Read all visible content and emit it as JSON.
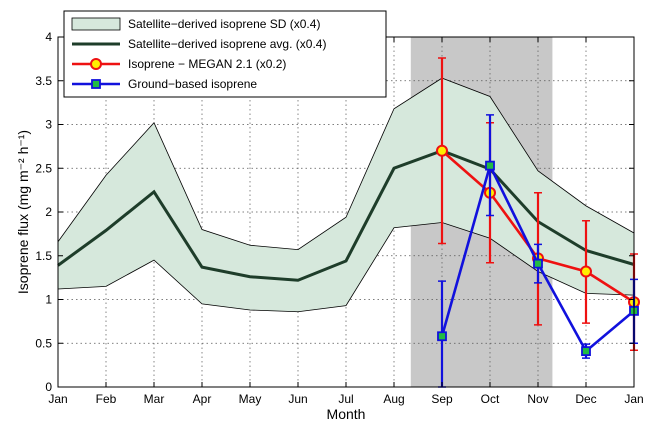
{
  "chart_data": {
    "type": "line",
    "xlabel": "Month",
    "ylabel": "Isoprene flux (mg m⁻² h⁻¹)",
    "x_categories": [
      "Jan",
      "Feb",
      "Mar",
      "Apr",
      "May",
      "Jun",
      "Jul",
      "Aug",
      "Sep",
      "Oct",
      "Nov",
      "Dec",
      "Jan"
    ],
    "ylim": [
      0,
      4
    ],
    "yticks": [
      "0",
      "0.5",
      "1",
      "1.5",
      "2",
      "2.5",
      "3",
      "3.5",
      "4"
    ],
    "grid": true,
    "legend_position": "top-left",
    "shaded_region": {
      "from": "Jul/Aug midpoint",
      "to": "Oct/Nov midpoint",
      "x_start": 7.35,
      "x_end": 10.3,
      "color": "#c8c8c8"
    },
    "series": [
      {
        "name": "Satellite−derived isoprene SD (x0.4)",
        "kind": "band",
        "color": "#d6e8dc",
        "edge_color": "#000000",
        "lower": [
          1.12,
          1.15,
          1.45,
          0.95,
          0.88,
          0.86,
          0.93,
          1.82,
          1.88,
          1.7,
          1.32,
          1.07,
          1.05
        ],
        "upper": [
          1.66,
          2.42,
          3.02,
          1.8,
          1.62,
          1.57,
          1.94,
          3.18,
          3.53,
          3.32,
          2.47,
          2.07,
          1.76
        ]
      },
      {
        "name": "Satellite−derived isoprene avg. (x0.4)",
        "kind": "line",
        "color": "#1e3d2a",
        "values": [
          1.39,
          1.79,
          2.23,
          1.37,
          1.26,
          1.22,
          1.44,
          2.5,
          2.7,
          2.49,
          1.89,
          1.56,
          1.4
        ]
      },
      {
        "name": "Isoprene − MEGAN 2.1 (x0.2)",
        "kind": "line-errorbar",
        "color": "#ee1111",
        "marker": "circle",
        "marker_fill": "#ffee00",
        "x_index": [
          8,
          9,
          10,
          11,
          12
        ],
        "values": [
          2.7,
          2.22,
          1.47,
          1.32,
          0.97
        ],
        "err_low": [
          1.64,
          1.42,
          0.71,
          0.73,
          0.42
        ],
        "err_high": [
          3.76,
          3.02,
          2.22,
          1.9,
          1.52
        ]
      },
      {
        "name": "Ground−based isoprene",
        "kind": "line-errorbar",
        "color": "#1111dd",
        "marker": "square",
        "marker_fill": "#22bb44",
        "x_index": [
          8,
          9,
          10,
          11,
          12
        ],
        "values": [
          0.58,
          2.53,
          1.41,
          0.41,
          0.87
        ],
        "err_low": [
          0.0,
          1.96,
          1.19,
          0.33,
          0.5
        ],
        "err_high": [
          1.21,
          3.11,
          1.63,
          0.49,
          1.23
        ]
      }
    ]
  }
}
